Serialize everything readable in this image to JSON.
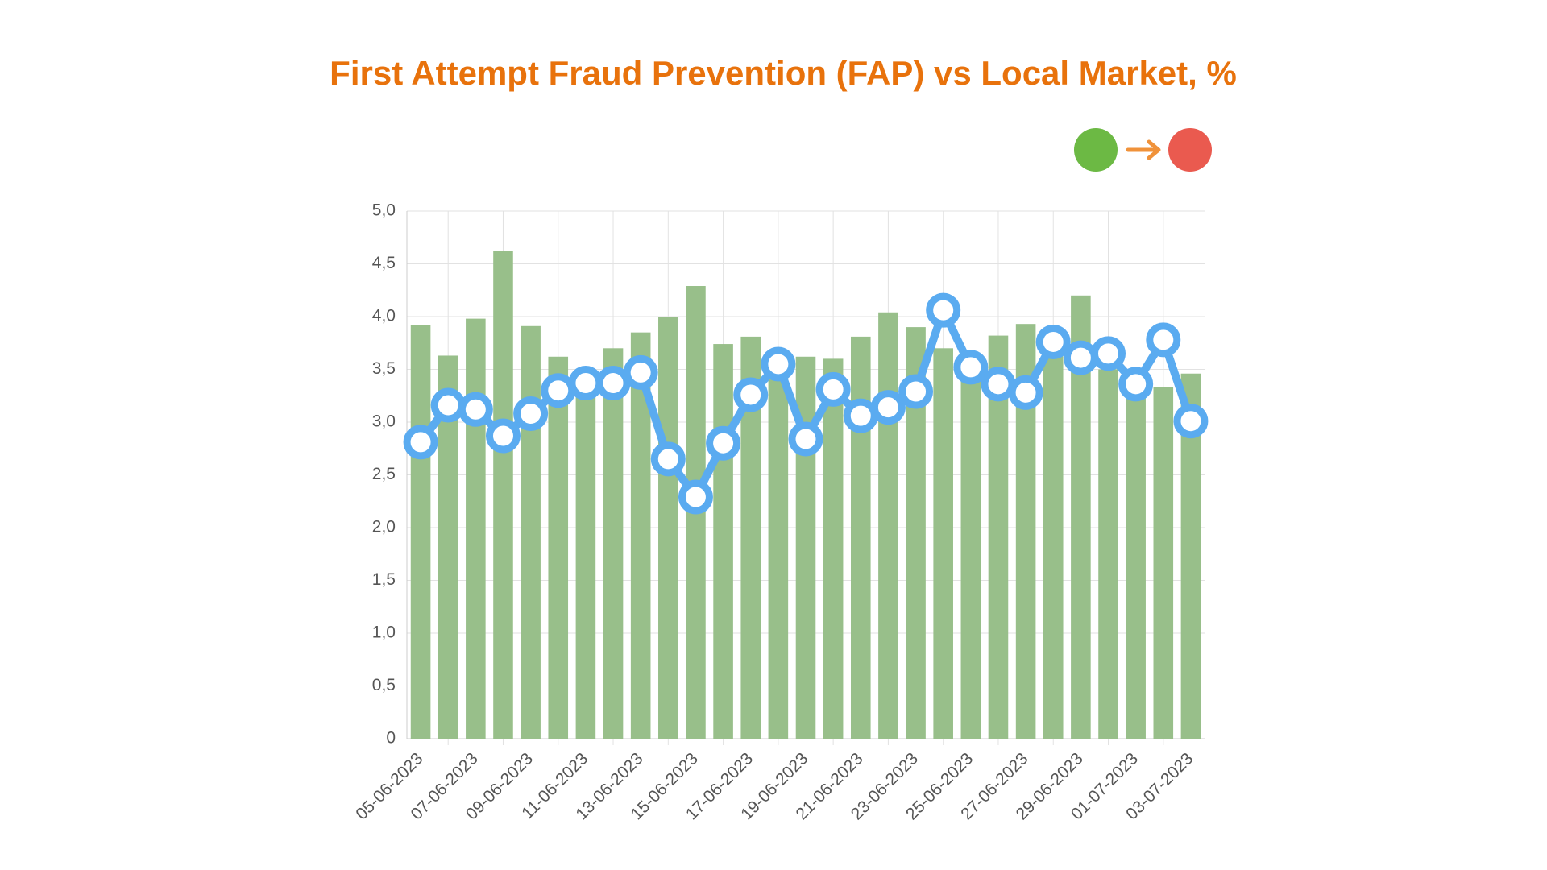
{
  "chart_data": {
    "type": "combo",
    "title": "First Attempt Fraud Prevention (FAP) vs Local Market, %",
    "categories": [
      "05-06-2023",
      null,
      "07-06-2023",
      null,
      "09-06-2023",
      null,
      "11-06-2023",
      null,
      "13-06-2023",
      null,
      "15-06-2023",
      null,
      "17-06-2023",
      null,
      "19-06-2023",
      null,
      "21-06-2023",
      null,
      "23-06-2023",
      null,
      "25-06-2023",
      null,
      "27-06-2023",
      null,
      "29-06-2023",
      null,
      "01-07-2023",
      null,
      "03-07-2023"
    ],
    "series": [
      {
        "type": "bar",
        "color": "#98bf8a",
        "values": [
          3.92,
          3.63,
          3.98,
          4.62,
          3.91,
          3.62,
          3.45,
          3.7,
          3.85,
          4.0,
          4.29,
          3.74,
          3.81,
          3.6,
          3.62,
          3.6,
          3.81,
          4.04,
          3.9,
          3.7,
          3.55,
          3.82,
          3.93,
          3.8,
          4.2,
          3.5,
          3.4,
          3.33,
          3.46
        ]
      },
      {
        "type": "line",
        "color": "#5aabf0",
        "values": [
          2.81,
          3.16,
          3.12,
          2.87,
          3.08,
          3.3,
          3.37,
          3.37,
          3.47,
          2.65,
          2.29,
          2.8,
          3.26,
          3.55,
          2.84,
          3.31,
          3.06,
          3.14,
          3.29,
          4.06,
          3.52,
          3.36,
          3.28,
          3.76,
          3.61,
          3.65,
          3.36,
          3.78,
          3.01
        ]
      }
    ],
    "ylim": [
      0,
      5
    ],
    "yticks": [
      0,
      {
        "value": 0.5,
        "label": "0,5"
      },
      {
        "value": 1,
        "label": "1,0"
      },
      {
        "value": 1.5,
        "label": "1,5"
      },
      {
        "value": 2,
        "label": "2,0"
      },
      {
        "value": 2.5,
        "label": "2,5"
      },
      {
        "value": 3,
        "label": "3,0"
      },
      {
        "value": 3.5,
        "label": "3,5"
      },
      {
        "value": 4,
        "label": "4,0"
      },
      {
        "value": 4.5,
        "label": "4,5"
      },
      {
        "value": 5,
        "label": "5,0"
      }
    ],
    "grid": true
  }
}
